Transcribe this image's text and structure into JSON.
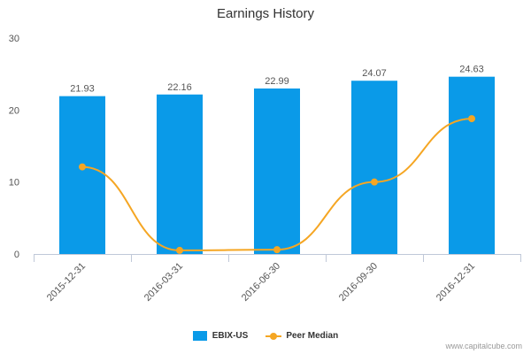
{
  "chart_data": {
    "type": "bar",
    "title": "Earnings History",
    "categories": [
      "2015-12-31",
      "2016-03-31",
      "2016-06-30",
      "2016-09-30",
      "2016-12-31"
    ],
    "series": [
      {
        "name": "EBIX-US",
        "type": "bar",
        "values": [
          21.93,
          22.16,
          22.99,
          24.07,
          24.63
        ],
        "labels": [
          "21.93",
          "22.16",
          "22.99",
          "24.07",
          "24.63"
        ],
        "color": "#0a9ae8"
      },
      {
        "name": "Peer Median",
        "type": "line",
        "values": [
          12.1,
          0.5,
          0.6,
          10.0,
          18.8
        ],
        "color": "#f5a623"
      }
    ],
    "ylim": [
      0,
      30
    ],
    "yticks": [
      "0",
      "10",
      "20",
      "30"
    ],
    "grid": false,
    "legend": "bottom-center"
  },
  "watermark": "www.capitalcube.com"
}
